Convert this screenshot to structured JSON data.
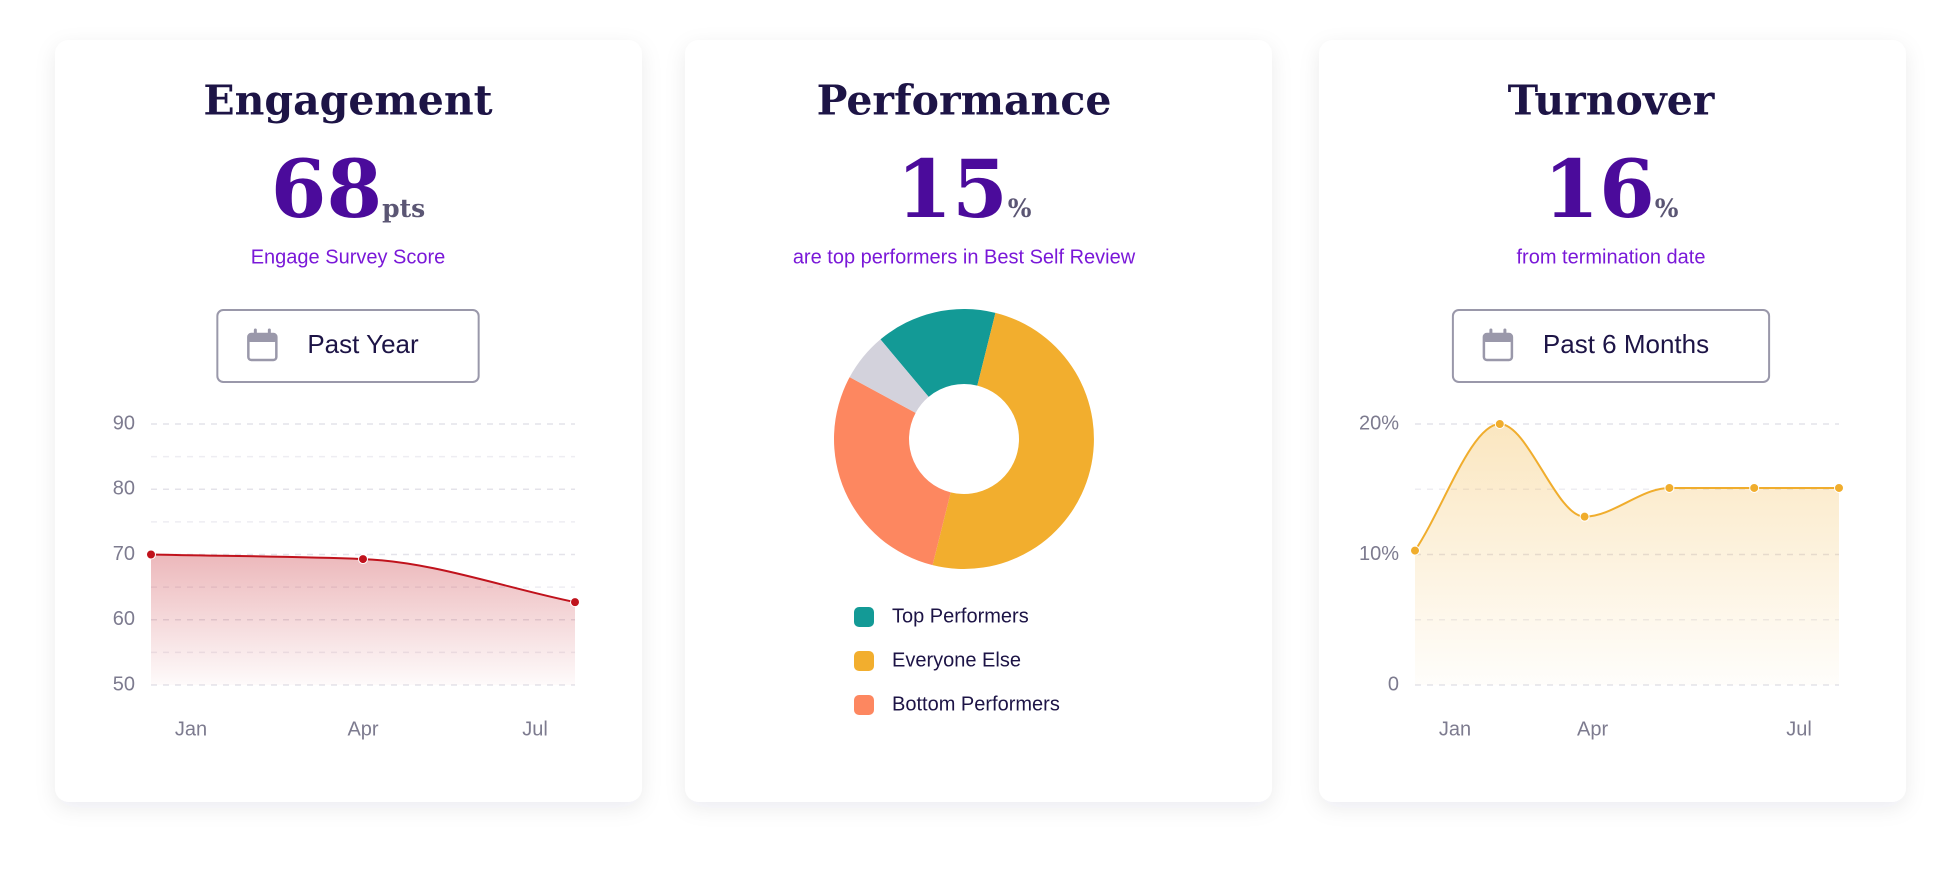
{
  "chart_data": [
    {
      "type": "line",
      "title": "Engagement",
      "value": 68,
      "unit": "pts",
      "subtitle": "Engage Survey Score",
      "button": "Past Year",
      "categories": [
        "Jan",
        "Apr",
        "Jul"
      ],
      "values": [
        70,
        69.3,
        62.7
      ],
      "color": "#c0121c",
      "ylim": [
        50,
        90
      ],
      "yticks": [
        50,
        60,
        70,
        80,
        90
      ],
      "grid": true
    },
    {
      "type": "pie",
      "title": "Performance",
      "value": 15,
      "unit": "%",
      "subtitle": "are top performers in Best Self Review",
      "categories": [
        "Top Performers",
        "Everyone Else",
        "Bottom Performers",
        null
      ],
      "values": [
        15,
        50,
        29,
        6
      ],
      "colors": [
        "#139a96",
        "#f2ae2e",
        "#fd8760",
        "#d3d2dc"
      ],
      "donut": true
    },
    {
      "type": "line",
      "title": "Turnover",
      "value": 16,
      "unit": "%",
      "subtitle": "from termination date",
      "button": "Past 6 Months",
      "categories": [
        "Jan",
        null,
        "Apr",
        null,
        null,
        "Jul"
      ],
      "values": [
        10.3,
        20,
        12.9,
        15.1,
        15.1,
        15.1
      ],
      "color": "#f0ad2d",
      "ylim": [
        0,
        20
      ],
      "yticks": [
        0,
        {
          "value": 10,
          "label": "10%"
        },
        {
          "value": 20,
          "label": "20%"
        }
      ],
      "grid": true
    }
  ]
}
